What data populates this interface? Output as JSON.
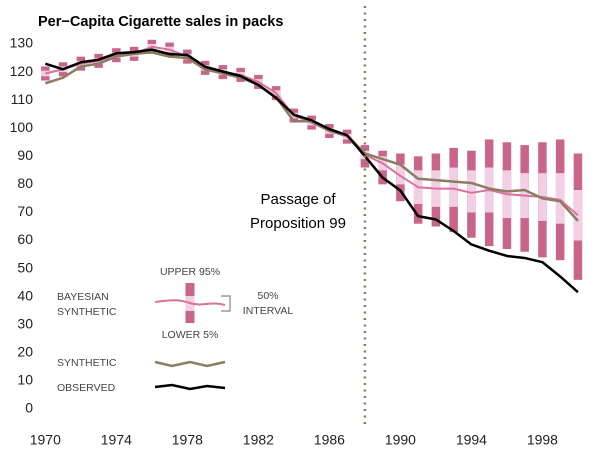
{
  "chart_data": {
    "type": "line",
    "title": "Per−Capita Cigarette sales in packs",
    "x": [
      1970,
      1971,
      1972,
      1973,
      1974,
      1975,
      1976,
      1977,
      1978,
      1979,
      1980,
      1981,
      1982,
      1983,
      1984,
      1985,
      1986,
      1987,
      1988,
      1989,
      1990,
      1991,
      1992,
      1993,
      1994,
      1995,
      1996,
      1997,
      1998,
      1999,
      2000
    ],
    "xlim": [
      1969.7,
      2001.3
    ],
    "xticks": [
      1970,
      1974,
      1978,
      1982,
      1986,
      1990,
      1994,
      1998
    ],
    "ylim": [
      0,
      130
    ],
    "yticks": [
      0,
      10,
      20,
      30,
      40,
      50,
      60,
      70,
      80,
      90,
      100,
      110,
      120,
      130
    ],
    "grid": false,
    "interval_colors": {
      "outer": "#c9658b",
      "inner": "#f2cfe4"
    },
    "series": [
      {
        "name": [
          "BAYESIAN",
          "SYNTHETIC"
        ],
        "color": "#d9719a",
        "values": [
          119.5,
          121,
          123,
          124,
          126,
          126.5,
          129,
          128,
          125.5,
          121.5,
          120,
          119,
          116.5,
          112.5,
          104.5,
          102,
          99,
          97,
          90.5,
          87.5,
          83,
          79,
          78.5,
          78.5,
          77,
          78,
          76.5,
          76,
          75.5,
          74.5,
          69
        ],
        "lower95": [
          117,
          118.5,
          120.5,
          121.5,
          123.5,
          124,
          126.5,
          125.5,
          123,
          119,
          117.5,
          116.5,
          114,
          110,
          102,
          99.5,
          96.5,
          94.5,
          86,
          80,
          74,
          66,
          65,
          63,
          61,
          58,
          57,
          56,
          54,
          53,
          46
        ],
        "lower50": [
          118.5,
          120,
          122,
          123,
          125,
          125.5,
          128,
          127,
          124.5,
          120.5,
          119,
          118,
          115.5,
          111.5,
          103.5,
          101,
          98,
          96,
          89,
          85,
          80,
          73,
          72,
          72,
          70,
          70,
          68,
          68,
          67,
          66,
          60
        ],
        "upper50": [
          120.5,
          122,
          124,
          125,
          127,
          127.5,
          130,
          129,
          126.5,
          122.5,
          121,
          120,
          117.5,
          113.5,
          105.5,
          103,
          100,
          98,
          92,
          90,
          87,
          85,
          85,
          86,
          85,
          86,
          85,
          84,
          84,
          84,
          78
        ],
        "upper95": [
          122,
          123.5,
          125.5,
          126.5,
          128.5,
          129,
          131.5,
          130.5,
          128,
          124,
          122.5,
          121.5,
          119,
          115,
          107,
          104.5,
          101.5,
          99.5,
          94,
          92,
          91,
          90,
          91,
          93,
          92,
          96,
          95,
          94,
          95,
          96,
          91
        ]
      },
      {
        "name": "SYNTHETIC",
        "color": "#8b7d62",
        "values": [
          116,
          118,
          122,
          123,
          125.5,
          126.5,
          127,
          125.5,
          125,
          121,
          119.5,
          118,
          115.5,
          111,
          102.5,
          102.5,
          99,
          97.5,
          91,
          89,
          87,
          82,
          81.5,
          81,
          80.5,
          78.5,
          77.5,
          78,
          75,
          74,
          67
        ]
      },
      {
        "name": "OBSERVED",
        "color": "#000000",
        "values": [
          123,
          121,
          123.5,
          124.4,
          126.7,
          127.1,
          128,
          126.4,
          126.1,
          121.9,
          120.2,
          118.6,
          115.4,
          110.8,
          104.8,
          102.8,
          99.7,
          97.5,
          90.1,
          82.4,
          77.8,
          68.7,
          67.5,
          63.4,
          58.6,
          56.4,
          54.5,
          53.8,
          52.3,
          47.2,
          41.6
        ]
      }
    ],
    "legend": {
      "upper": "UPPER 95%",
      "lower": "LOWER 5%",
      "interval": [
        "50%",
        "INTERVAL"
      ]
    },
    "annotation": {
      "lines": [
        "Passage of",
        "Proposition 99"
      ],
      "x": 1988
    }
  }
}
